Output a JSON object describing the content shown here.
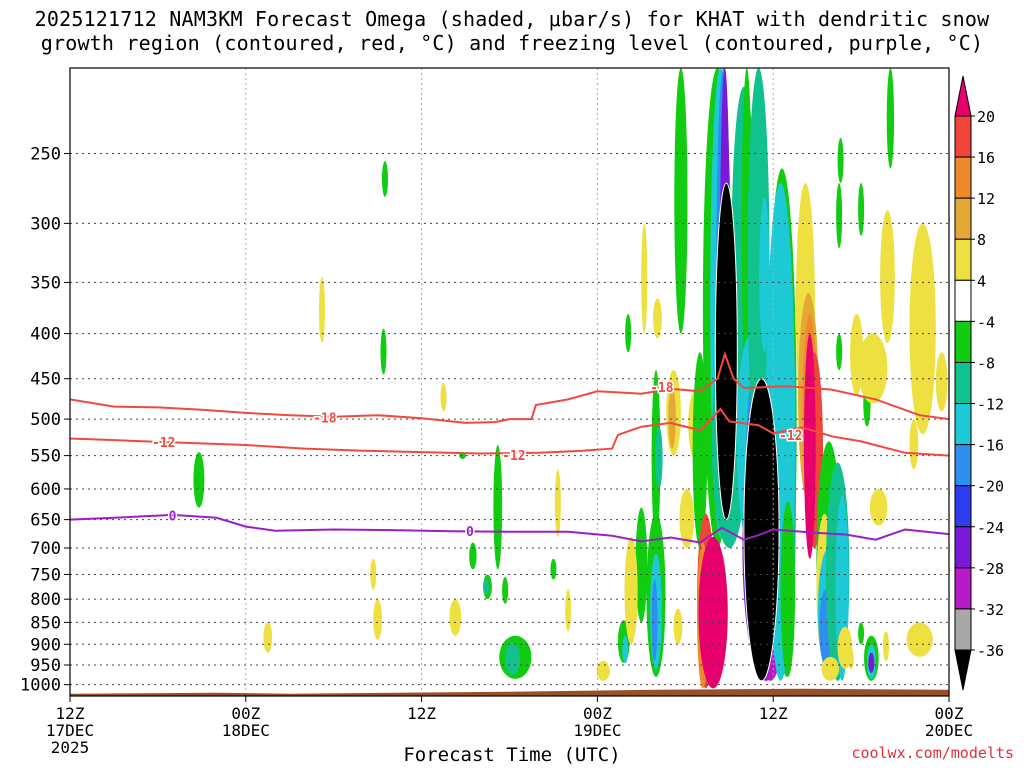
{
  "title": {
    "line1": "2025121712 NAM3KM Forecast Omega (shaded, μbar/s) for KHAT with dendritic snow",
    "line2": "growth region (contoured, red, °C) and freezing level (contoured, purple, °C)"
  },
  "credit": "coolwx.com/modelts",
  "chart_data": {
    "type": "heatmap",
    "title": "2025121712 NAM3KM Forecast Omega (shaded, μbar/s) for KHAT with dendritic snow growth region (contoured, red, °C) and freezing level (contoured, purple, °C)",
    "xlabel": "Forecast Time (UTC)",
    "ylabel": "",
    "x_unit": "hours from 2025-12-17 12Z",
    "xlim": [
      0,
      60
    ],
    "ylim": [
      1030,
      200
    ],
    "y_scale": "log (pressure, hPa)",
    "grid": true,
    "x_ticks": [
      {
        "x": 0,
        "lines": [
          "12Z",
          "17DEC",
          "2025"
        ]
      },
      {
        "x": 12,
        "lines": [
          "00Z",
          "18DEC"
        ]
      },
      {
        "x": 24,
        "lines": [
          "12Z"
        ]
      },
      {
        "x": 36,
        "lines": [
          "00Z",
          "19DEC"
        ]
      },
      {
        "x": 48,
        "lines": [
          "12Z"
        ]
      },
      {
        "x": 60,
        "lines": [
          "00Z",
          "20DEC"
        ]
      }
    ],
    "y_ticks": [
      250,
      300,
      350,
      400,
      450,
      500,
      550,
      600,
      650,
      700,
      750,
      800,
      850,
      900,
      950,
      1000
    ],
    "colorbar": {
      "labels": [
        "20",
        "16",
        "12",
        "8",
        "4",
        "-4",
        "-8",
        "-12",
        "-16",
        "-20",
        "-24",
        "-28",
        "-32",
        "-36"
      ],
      "colors": [
        "#e8006e",
        "#f0453a",
        "#ef8a2a",
        "#e3a934",
        "#ede040",
        "#ffffff",
        "#11cc11",
        "#11c28f",
        "#1ec9d6",
        "#2f8ff0",
        "#2f3df0",
        "#7a1ad8",
        "#b81ac8",
        "#a8a8a8",
        "#000000"
      ]
    },
    "series": [
      {
        "name": "-18",
        "color": "#f04a40",
        "label_positions": [
          [
            17.4,
            498
          ],
          [
            40.4,
            460
          ]
        ],
        "points": [
          [
            0,
            475
          ],
          [
            3,
            484
          ],
          [
            6,
            485
          ],
          [
            9,
            488
          ],
          [
            12,
            492
          ],
          [
            15,
            495
          ],
          [
            18,
            497
          ],
          [
            21,
            495
          ],
          [
            24,
            499
          ],
          [
            27,
            505
          ],
          [
            29,
            504
          ],
          [
            30,
            500
          ],
          [
            31.5,
            500
          ],
          [
            31.8,
            482
          ],
          [
            34,
            475
          ],
          [
            36,
            465
          ],
          [
            39,
            468
          ],
          [
            41,
            462
          ],
          [
            43,
            465
          ],
          [
            44.2,
            450
          ],
          [
            44.7,
            422
          ],
          [
            45.3,
            450
          ],
          [
            46,
            461
          ],
          [
            49,
            459
          ],
          [
            52,
            463
          ],
          [
            55,
            475
          ],
          [
            58,
            495
          ],
          [
            60,
            500
          ]
        ]
      },
      {
        "name": "-12",
        "color": "#f04a40",
        "label_positions": [
          [
            6.4,
            531
          ],
          [
            30.3,
            549
          ],
          [
            49.2,
            521
          ]
        ],
        "points": [
          [
            0,
            526
          ],
          [
            4,
            529
          ],
          [
            8,
            532
          ],
          [
            12,
            535
          ],
          [
            16,
            540
          ],
          [
            20,
            543
          ],
          [
            24,
            545
          ],
          [
            28,
            547
          ],
          [
            32,
            546
          ],
          [
            35,
            543
          ],
          [
            37,
            540
          ],
          [
            37.4,
            521
          ],
          [
            39,
            510
          ],
          [
            41,
            505
          ],
          [
            43,
            515
          ],
          [
            44.4,
            487
          ],
          [
            45,
            503
          ],
          [
            47,
            508
          ],
          [
            48,
            519
          ],
          [
            50,
            511
          ],
          [
            52,
            523
          ],
          [
            54,
            530
          ],
          [
            57,
            546
          ],
          [
            60,
            550
          ]
        ]
      },
      {
        "name": "0",
        "color": "#9b1fc7",
        "label_positions": [
          [
            7,
            643
          ],
          [
            27.3,
            670
          ]
        ],
        "points": [
          [
            0,
            650
          ],
          [
            3,
            647
          ],
          [
            7,
            642
          ],
          [
            10,
            647
          ],
          [
            12,
            662
          ],
          [
            14,
            669
          ],
          [
            18,
            667
          ],
          [
            22,
            668
          ],
          [
            26,
            670
          ],
          [
            30,
            671
          ],
          [
            34,
            671
          ],
          [
            37,
            678
          ],
          [
            39,
            688
          ],
          [
            41,
            681
          ],
          [
            43,
            690
          ],
          [
            44.5,
            664
          ],
          [
            46,
            685
          ],
          [
            47,
            677
          ],
          [
            48,
            667
          ],
          [
            51,
            673
          ],
          [
            53,
            676
          ],
          [
            55,
            685
          ],
          [
            57,
            667
          ],
          [
            60,
            675
          ]
        ]
      }
    ],
    "shaded_regions": [
      {
        "band": "-36",
        "color": "#000000",
        "x": 44.8,
        "x_width": 1.5,
        "p_top": 270,
        "p_bottom": 650
      },
      {
        "band": "-36",
        "color": "#000000",
        "x": 47.2,
        "x_width": 2.4,
        "p_top": 450,
        "p_bottom": 990
      },
      {
        "band": "20",
        "color": "#e8006e",
        "x": 43.9,
        "x_width": 2.0,
        "p_top": 680,
        "p_bottom": 1010
      },
      {
        "band": "20",
        "color": "#e8006e",
        "x": 50.5,
        "x_width": 0.8,
        "p_top": 400,
        "p_bottom": 720
      }
    ],
    "surface_color": "#9b4f29"
  }
}
